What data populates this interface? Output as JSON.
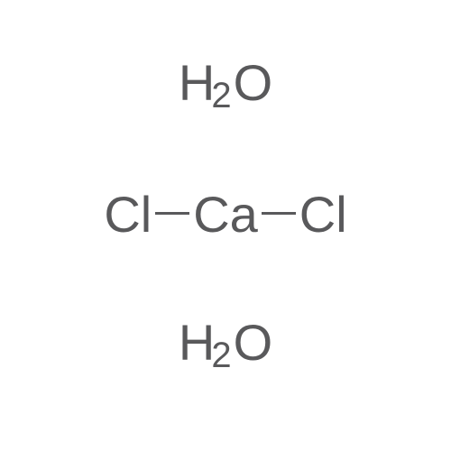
{
  "diagram": {
    "type": "chemical-structure",
    "background_color": "#ffffff",
    "text_color": "#59595b",
    "bond_color": "#59595b",
    "atom_fontsize": 56,
    "subscript_fontsize": 40,
    "bond_length": 38,
    "bond_thickness": 3,
    "water_top": {
      "H": "H",
      "sub": "2",
      "O": "O"
    },
    "cacl2": {
      "Cl_left": "Cl",
      "Ca": "Ca",
      "Cl_right": "Cl"
    },
    "water_bottom": {
      "H": "H",
      "sub": "2",
      "O": "O"
    }
  }
}
